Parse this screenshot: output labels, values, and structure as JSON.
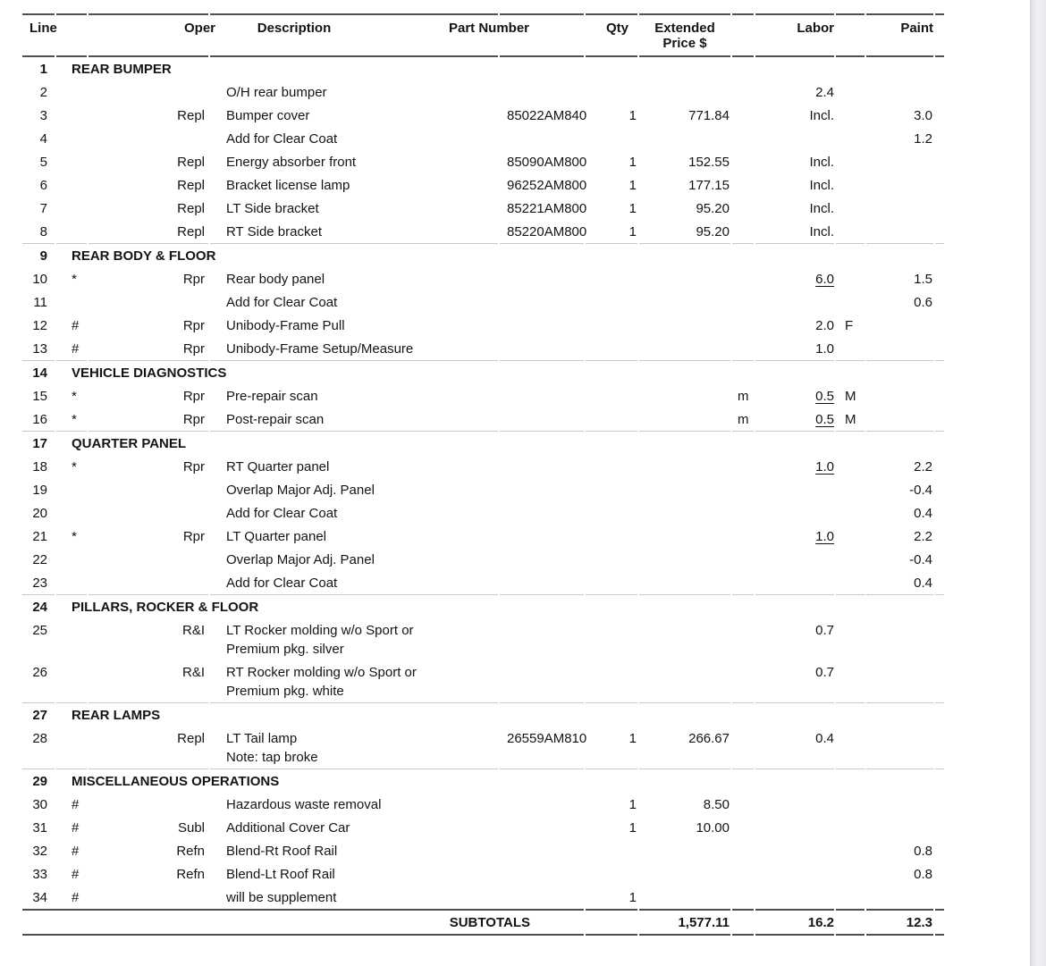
{
  "colors": {
    "rule_dark": "#4f4f4f",
    "rule_light": "#c8c8c8",
    "text": "#141414",
    "scrollbar": "#e9e9ee"
  },
  "table": {
    "headers": {
      "line": "Line",
      "oper": "Oper",
      "description": "Description",
      "part": "Part Number",
      "qty": "Qty",
      "price_line1": "Extended",
      "price_line2": "Price $",
      "labor": "Labor",
      "paint": "Paint"
    },
    "rows": [
      {
        "line": "1",
        "section": "REAR BUMPER"
      },
      {
        "line": "2",
        "desc": "O/H rear bumper",
        "labor": "2.4"
      },
      {
        "line": "3",
        "oper": "Repl",
        "desc": "Bumper cover",
        "part": "85022AM840",
        "qty": "1",
        "price": "771.84",
        "labor": "Incl.",
        "paint": "3.0"
      },
      {
        "line": "4",
        "desc": "Add for Clear Coat",
        "paint": "1.2"
      },
      {
        "line": "5",
        "oper": "Repl",
        "desc": "Energy absorber front",
        "part": "85090AM800",
        "qty": "1",
        "price": "152.55",
        "labor": "Incl."
      },
      {
        "line": "6",
        "oper": "Repl",
        "desc": "Bracket license lamp",
        "part": "96252AM800",
        "qty": "1",
        "price": "177.15",
        "labor": "Incl."
      },
      {
        "line": "7",
        "oper": "Repl",
        "desc": "LT Side bracket",
        "part": "85221AM800",
        "qty": "1",
        "price": "95.20",
        "labor": "Incl."
      },
      {
        "line": "8",
        "oper": "Repl",
        "desc": "RT Side bracket",
        "part": "85220AM800",
        "qty": "1",
        "price": "95.20",
        "labor": "Incl.",
        "divider": true
      },
      {
        "line": "9",
        "section": "REAR BODY & FLOOR"
      },
      {
        "line": "10",
        "marker": "*",
        "oper": "Rpr",
        "desc": "Rear body panel",
        "labor": "6.0",
        "labor_ul": true,
        "paint": "1.5"
      },
      {
        "line": "11",
        "desc": "Add for Clear Coat",
        "paint": "0.6"
      },
      {
        "line": "12",
        "marker": "#",
        "oper": "Rpr",
        "desc": "Unibody-Frame Pull",
        "labor": "2.0",
        "labor_suffix": "F"
      },
      {
        "line": "13",
        "marker": "#",
        "oper": "Rpr",
        "desc": "Unibody-Frame Setup/Measure",
        "labor": "1.0",
        "divider": true
      },
      {
        "line": "14",
        "section": "VEHICLE DIAGNOSTICS"
      },
      {
        "line": "15",
        "marker": "*",
        "oper": "Rpr",
        "desc": "Pre-repair scan",
        "price_unit": "m",
        "labor": "0.5",
        "labor_ul": true,
        "labor_suffix": "M"
      },
      {
        "line": "16",
        "marker": "*",
        "oper": "Rpr",
        "desc": "Post-repair scan",
        "price_unit": "m",
        "labor": "0.5",
        "labor_ul": true,
        "labor_suffix": "M",
        "divider": true
      },
      {
        "line": "17",
        "section": "QUARTER PANEL"
      },
      {
        "line": "18",
        "marker": "*",
        "oper": "Rpr",
        "desc": "RT Quarter panel",
        "labor": "1.0",
        "labor_ul": true,
        "paint": "2.2"
      },
      {
        "line": "19",
        "desc": "Overlap Major Adj. Panel",
        "paint": "-0.4"
      },
      {
        "line": "20",
        "desc": "Add for Clear Coat",
        "paint": "0.4"
      },
      {
        "line": "21",
        "marker": "*",
        "oper": "Rpr",
        "desc": "LT Quarter panel",
        "labor": "1.0",
        "labor_ul": true,
        "paint": "2.2"
      },
      {
        "line": "22",
        "desc": "Overlap Major Adj. Panel",
        "paint": "-0.4"
      },
      {
        "line": "23",
        "desc": "Add for Clear Coat",
        "paint": "0.4",
        "divider": true
      },
      {
        "line": "24",
        "section": "PILLARS, ROCKER & FLOOR"
      },
      {
        "line": "25",
        "oper": "R&I",
        "desc": "LT Rocker molding w/o Sport or",
        "desc2": "Premium pkg. silver",
        "labor": "0.7"
      },
      {
        "line": "26",
        "oper": "R&I",
        "desc": "RT Rocker molding w/o Sport or",
        "desc2": "Premium pkg. white",
        "labor": "0.7",
        "divider": true
      },
      {
        "line": "27",
        "section": "REAR LAMPS"
      },
      {
        "line": "28",
        "oper": "Repl",
        "desc": "LT Tail lamp",
        "desc2": "Note: tap broke",
        "part": "26559AM810",
        "qty": "1",
        "price": "266.67",
        "labor": "0.4",
        "divider": true
      },
      {
        "line": "29",
        "section": "MISCELLANEOUS OPERATIONS"
      },
      {
        "line": "30",
        "marker": "#",
        "desc": "Hazardous waste removal",
        "qty": "1",
        "price": "8.50"
      },
      {
        "line": "31",
        "marker": "#",
        "oper": "Subl",
        "desc": "Additional Cover Car",
        "qty": "1",
        "price": "10.00"
      },
      {
        "line": "32",
        "marker": "#",
        "oper": "Refn",
        "desc": "Blend-Rt Roof Rail",
        "paint": "0.8"
      },
      {
        "line": "33",
        "marker": "#",
        "oper": "Refn",
        "desc": "Blend-Lt Roof Rail",
        "paint": "0.8"
      },
      {
        "line": "34",
        "marker": "#",
        "desc": "will be supplement",
        "qty": "1"
      }
    ],
    "subtotals": {
      "label": "SUBTOTALS",
      "price": "1,577.11",
      "labor": "16.2",
      "paint": "12.3"
    }
  }
}
